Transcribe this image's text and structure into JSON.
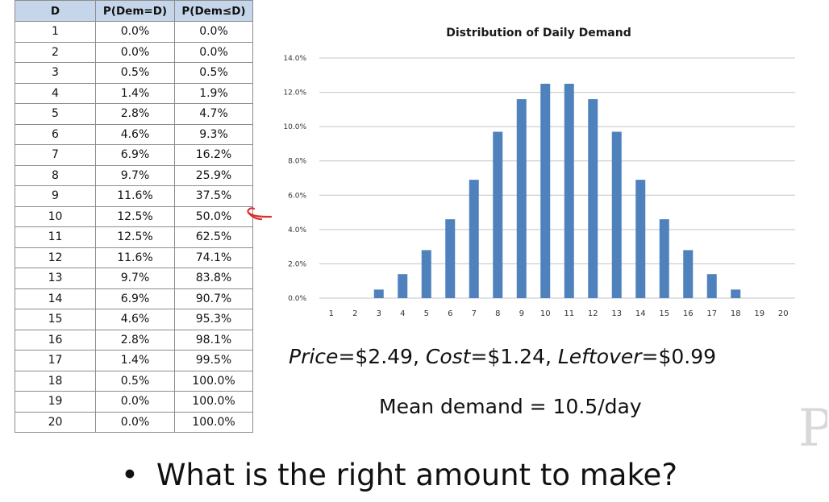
{
  "table": {
    "headers": [
      "D",
      "P(Dem=D)",
      "P(Dem≤D)"
    ],
    "rows": [
      [
        "1",
        "0.0%",
        "0.0%"
      ],
      [
        "2",
        "0.0%",
        "0.0%"
      ],
      [
        "3",
        "0.5%",
        "0.5%"
      ],
      [
        "4",
        "1.4%",
        "1.9%"
      ],
      [
        "5",
        "2.8%",
        "4.7%"
      ],
      [
        "6",
        "4.6%",
        "9.3%"
      ],
      [
        "7",
        "6.9%",
        "16.2%"
      ],
      [
        "8",
        "9.7%",
        "25.9%"
      ],
      [
        "9",
        "11.6%",
        "37.5%"
      ],
      [
        "10",
        "12.5%",
        "50.0%"
      ],
      [
        "11",
        "12.5%",
        "62.5%"
      ],
      [
        "12",
        "11.6%",
        "74.1%"
      ],
      [
        "13",
        "9.7%",
        "83.8%"
      ],
      [
        "14",
        "6.9%",
        "90.7%"
      ],
      [
        "15",
        "4.6%",
        "95.3%"
      ],
      [
        "16",
        "2.8%",
        "98.1%"
      ],
      [
        "17",
        "1.4%",
        "99.5%"
      ],
      [
        "18",
        "0.5%",
        "100.0%"
      ],
      [
        "19",
        "0.0%",
        "100.0%"
      ],
      [
        "20",
        "0.0%",
        "100.0%"
      ]
    ]
  },
  "chart_data": {
    "type": "bar",
    "title": "Distribution of Daily Demand",
    "categories": [
      "1",
      "2",
      "3",
      "4",
      "5",
      "6",
      "7",
      "8",
      "9",
      "10",
      "11",
      "12",
      "13",
      "14",
      "15",
      "16",
      "17",
      "18",
      "19",
      "20"
    ],
    "values": [
      0.0,
      0.0,
      0.5,
      1.4,
      2.8,
      4.6,
      6.9,
      9.7,
      11.6,
      12.5,
      12.5,
      11.6,
      9.7,
      6.9,
      4.6,
      2.8,
      1.4,
      0.5,
      0.0,
      0.0
    ],
    "ylim": [
      0,
      14
    ],
    "yticks": [
      "0.0%",
      "2.0%",
      "4.0%",
      "6.0%",
      "8.0%",
      "10.0%",
      "12.0%",
      "14.0%"
    ],
    "xlabel": "",
    "ylabel": "",
    "grid": true,
    "legend": "none",
    "bar_color": "#4f81bd"
  },
  "params": {
    "price_label": "Price",
    "price_value": "=$2.49, ",
    "cost_label": "Cost",
    "cost_value": "=$1.24, ",
    "leftover_label": "Leftover",
    "leftover_value": "=$0.99"
  },
  "mean_text": "Mean demand = 10.5/day",
  "question": {
    "bullet": "•",
    "text": "What is the right amount to make?"
  },
  "annotation_color": "#d9302c"
}
